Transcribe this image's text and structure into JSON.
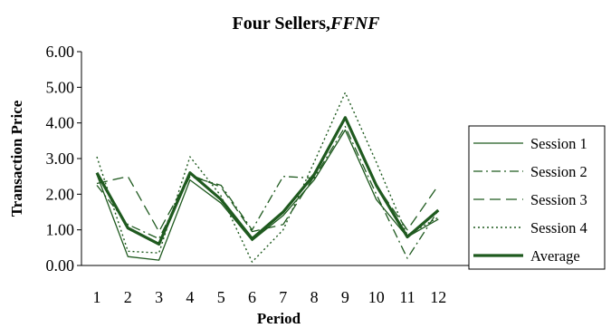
{
  "chart_data": {
    "type": "line",
    "title": "Four Sellers,",
    "title_italic": "FFNF",
    "xlabel": "Period",
    "ylabel": "Transaction Price",
    "x": [
      1,
      2,
      3,
      4,
      5,
      6,
      7,
      8,
      9,
      10,
      11,
      12
    ],
    "x_tick_labels": [
      "1",
      "2",
      "3",
      "4",
      "5",
      "6",
      "7",
      "8",
      "9",
      "10",
      "11",
      "12"
    ],
    "y_tick_labels": [
      "0.00",
      "1.00",
      "2.00",
      "3.00",
      "4.00",
      "5.00",
      "6.00"
    ],
    "ylim": [
      0,
      6
    ],
    "grid": false,
    "legend_position": "right",
    "series": [
      {
        "name": "Session 1",
        "style": "solid-thin",
        "values": [
          2.55,
          0.25,
          0.15,
          2.4,
          1.75,
          0.7,
          1.4,
          2.4,
          3.8,
          1.85,
          0.8,
          1.3
        ]
      },
      {
        "name": "Session 2",
        "style": "dashdot",
        "values": [
          2.25,
          1.15,
          0.75,
          2.5,
          2.25,
          1.0,
          2.5,
          2.45,
          3.9,
          2.0,
          0.2,
          1.55
        ]
      },
      {
        "name": "Session 3",
        "style": "longdash",
        "values": [
          2.3,
          2.5,
          0.95,
          2.55,
          2.2,
          0.95,
          1.15,
          2.5,
          4.15,
          2.25,
          1.0,
          2.25
        ]
      },
      {
        "name": "Session 4",
        "style": "dotted",
        "values": [
          3.05,
          0.4,
          0.35,
          3.05,
          1.95,
          0.1,
          1.0,
          2.9,
          4.85,
          2.9,
          0.85,
          1.35
        ]
      },
      {
        "name": "Average",
        "style": "solid-thick",
        "values": [
          2.6,
          1.05,
          0.6,
          2.6,
          1.85,
          0.75,
          1.5,
          2.55,
          4.15,
          2.25,
          0.8,
          1.55
        ]
      }
    ]
  }
}
